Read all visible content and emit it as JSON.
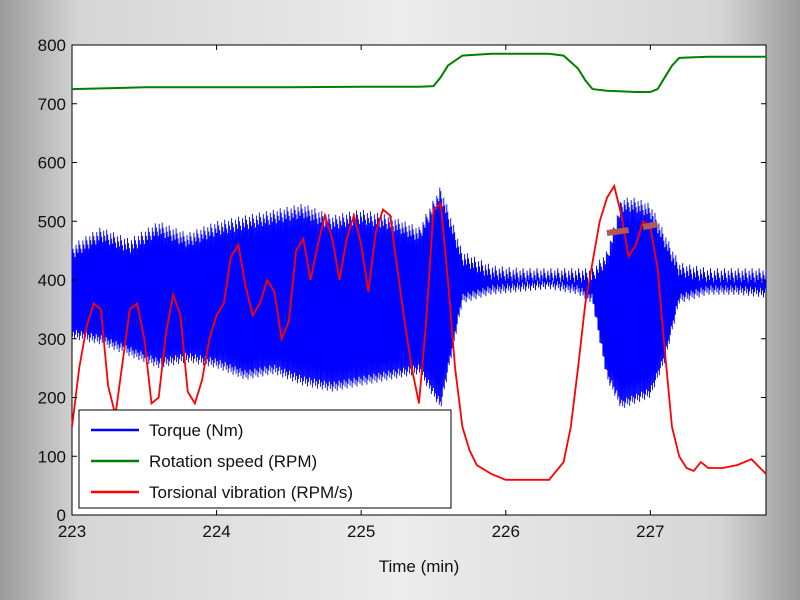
{
  "chart_data": {
    "type": "line",
    "title": "",
    "xlabel": "Time (min)",
    "ylabel": "",
    "xlim": [
      223,
      227.8
    ],
    "ylim": [
      0,
      800
    ],
    "x_ticks": [
      223,
      224,
      225,
      226,
      227
    ],
    "y_ticks": [
      0,
      100,
      200,
      300,
      400,
      500,
      600,
      700,
      800
    ],
    "grid": false,
    "legend_position": "bottom-left",
    "series": [
      {
        "name": "Torque (Nm)",
        "color": "#0000ff",
        "style": "dense-oscillation",
        "x": [
          223.0,
          223.2,
          223.4,
          223.6,
          223.8,
          224.0,
          224.2,
          224.4,
          224.6,
          224.8,
          225.0,
          225.2,
          225.4,
          225.55,
          225.7,
          225.9,
          226.1,
          226.3,
          226.5,
          226.6,
          226.7,
          226.8,
          226.9,
          227.0,
          227.1,
          227.2,
          227.4,
          227.6,
          227.8
        ],
        "upper": [
          460,
          490,
          470,
          500,
          480,
          500,
          510,
          520,
          530,
          510,
          520,
          510,
          490,
          560,
          450,
          425,
          420,
          420,
          420,
          420,
          450,
          540,
          540,
          530,
          480,
          430,
          420,
          420,
          420
        ],
        "lower": [
          300,
          290,
          270,
          250,
          260,
          250,
          230,
          240,
          220,
          210,
          220,
          230,
          240,
          180,
          360,
          375,
          380,
          385,
          375,
          360,
          230,
          180,
          190,
          200,
          260,
          360,
          375,
          375,
          370
        ]
      },
      {
        "name": "Rotation speed (RPM)",
        "color": "#008000",
        "x": [
          223.0,
          223.5,
          224.0,
          224.5,
          225.0,
          225.4,
          225.5,
          225.55,
          225.6,
          225.7,
          225.9,
          226.1,
          226.3,
          226.4,
          226.5,
          226.55,
          226.6,
          226.7,
          226.9,
          227.0,
          227.05,
          227.1,
          227.15,
          227.2,
          227.4,
          227.6,
          227.8
        ],
        "values": [
          725,
          728,
          728,
          728,
          729,
          729,
          730,
          745,
          765,
          782,
          785,
          785,
          785,
          782,
          760,
          740,
          725,
          722,
          720,
          720,
          725,
          745,
          765,
          778,
          780,
          780,
          780
        ]
      },
      {
        "name": "Torsional vibration (RPM/s)",
        "color": "#ff0000",
        "x": [
          223.0,
          223.05,
          223.1,
          223.15,
          223.2,
          223.25,
          223.3,
          223.35,
          223.4,
          223.45,
          223.5,
          223.55,
          223.6,
          223.65,
          223.7,
          223.75,
          223.8,
          223.85,
          223.9,
          223.95,
          224.0,
          224.05,
          224.1,
          224.15,
          224.2,
          224.25,
          224.3,
          224.35,
          224.4,
          224.45,
          224.5,
          224.55,
          224.6,
          224.65,
          224.7,
          224.75,
          224.8,
          224.85,
          224.9,
          224.95,
          225.0,
          225.05,
          225.1,
          225.15,
          225.2,
          225.25,
          225.3,
          225.35,
          225.4,
          225.45,
          225.5,
          225.55,
          225.6,
          225.65,
          225.7,
          225.75,
          225.8,
          225.9,
          226.0,
          226.1,
          226.2,
          226.3,
          226.4,
          226.45,
          226.5,
          226.55,
          226.6,
          226.65,
          226.7,
          226.75,
          226.8,
          226.85,
          226.9,
          226.95,
          227.0,
          227.05,
          227.1,
          227.15,
          227.2,
          227.25,
          227.3,
          227.35,
          227.4,
          227.5,
          227.6,
          227.7,
          227.8
        ],
        "values": [
          150,
          250,
          320,
          360,
          350,
          220,
          170,
          260,
          350,
          360,
          300,
          190,
          200,
          310,
          375,
          340,
          210,
          190,
          230,
          300,
          340,
          360,
          440,
          460,
          390,
          340,
          360,
          400,
          380,
          300,
          330,
          450,
          470,
          400,
          460,
          510,
          470,
          400,
          470,
          510,
          460,
          380,
          480,
          520,
          510,
          420,
          330,
          250,
          190,
          330,
          520,
          530,
          400,
          250,
          150,
          110,
          85,
          70,
          60,
          60,
          60,
          60,
          90,
          150,
          250,
          360,
          430,
          500,
          540,
          560,
          510,
          440,
          460,
          500,
          490,
          420,
          280,
          150,
          100,
          80,
          75,
          90,
          80,
          80,
          85,
          95,
          70
        ]
      }
    ],
    "annotations": [
      {
        "type": "segment",
        "color": "#b05a50",
        "x": [
          226.7,
          226.85
        ],
        "y": [
          480,
          485
        ]
      },
      {
        "type": "segment",
        "color": "#b05a50",
        "x": [
          226.95,
          227.05
        ],
        "y": [
          490,
          495
        ]
      }
    ]
  }
}
